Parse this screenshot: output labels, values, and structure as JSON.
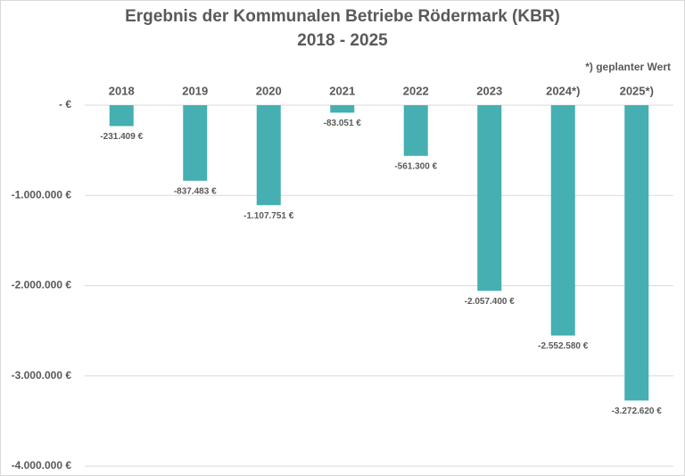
{
  "chart_data": {
    "type": "bar",
    "title": "Ergebnis der Kommunalen Betriebe Rödermark (KBR)",
    "subtitle": "2018 - 2025",
    "annotation": "*) geplanter Wert",
    "categories": [
      "2018",
      "2019",
      "2020",
      "2021",
      "2022",
      "2023",
      "2024*)",
      "2025*)"
    ],
    "values": [
      -231409,
      -837483,
      -1107751,
      -83051,
      -561300,
      -2057400,
      -2552580,
      -3272620
    ],
    "value_labels": [
      "-231.409 €",
      "-837.483 €",
      "-1.107.751 €",
      "-83.051 €",
      "-561.300 €",
      "-2.057.400 €",
      "-2.552.580 €",
      "-3.272.620 €"
    ],
    "color": "#45afb1",
    "ylim": [
      -4000000,
      0
    ],
    "yticks": [
      {
        "value": 0,
        "label": "-  €"
      },
      {
        "value": -1000000,
        "label": "-1.000.000 €"
      },
      {
        "value": -2000000,
        "label": "-2.000.000 €"
      },
      {
        "value": -3000000,
        "label": "-3.000.000 €"
      },
      {
        "value": -4000000,
        "label": "-4.000.000 €"
      }
    ],
    "grid": true
  }
}
